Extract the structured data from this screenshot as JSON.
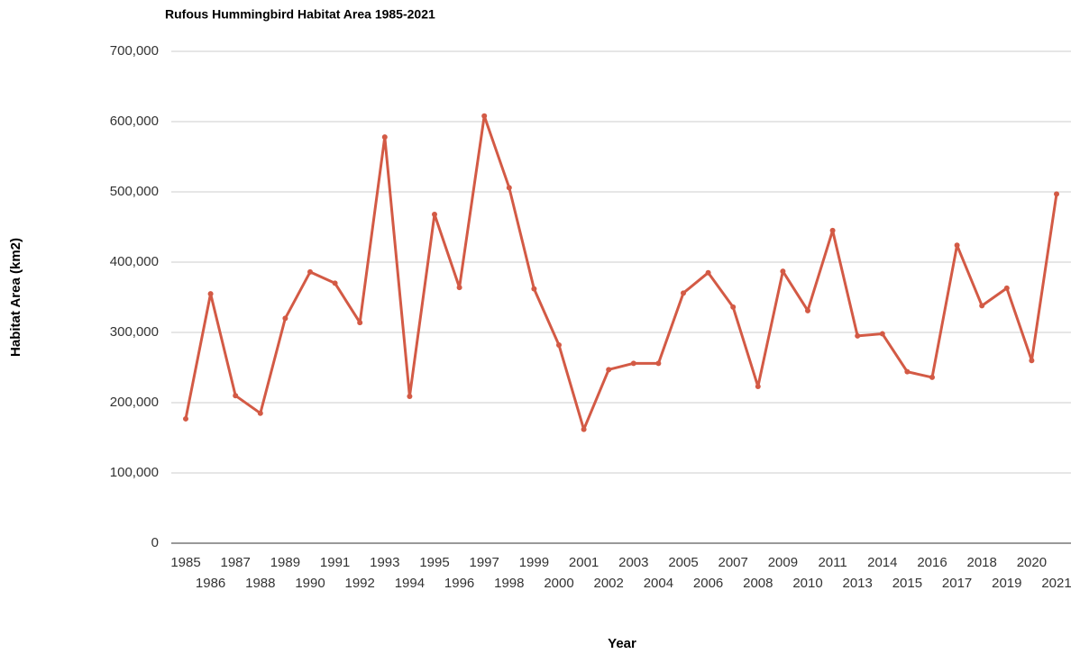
{
  "chart_data": {
    "type": "line",
    "title": "Rufous Hummingbird Habitat Area 1985-2021",
    "x_label": "Year",
    "y_label": "Habitat Area (km2)",
    "categories": [
      "1985",
      "1986",
      "1987",
      "1988",
      "1989",
      "1990",
      "1991",
      "1992",
      "1993",
      "1994",
      "1995",
      "1996",
      "1997",
      "1998",
      "1999",
      "2000",
      "2001",
      "2002",
      "2003",
      "2004",
      "2005",
      "2006",
      "2007",
      "2008",
      "2009",
      "2010",
      "2011",
      "2013",
      "2014",
      "2015",
      "2016",
      "2017",
      "2018",
      "2019",
      "2020",
      "2021"
    ],
    "series": [
      {
        "name": "Habitat Area",
        "color": "#d35a45",
        "values": [
          177000,
          355000,
          210000,
          185000,
          320000,
          386000,
          370000,
          314000,
          578000,
          209000,
          468000,
          364000,
          608000,
          506000,
          362000,
          282000,
          162000,
          247000,
          256000,
          256000,
          356000,
          385000,
          336000,
          223000,
          387000,
          331000,
          445000,
          295000,
          298000,
          244000,
          236000,
          424000,
          338000,
          363000,
          260000,
          497000
        ]
      }
    ],
    "ylim": [
      0,
      700000
    ],
    "yticks": [
      0,
      {
        "value": 100000,
        "label": "100,000"
      },
      {
        "value": 200000,
        "label": "200,000"
      },
      {
        "value": 300000,
        "label": "300,000"
      },
      {
        "value": 400000,
        "label": "400,000"
      },
      {
        "value": 500000,
        "label": "500,000"
      },
      {
        "value": 600000,
        "label": "600,000"
      },
      {
        "value": 700000,
        "label": "700,000"
      }
    ],
    "grid": true
  }
}
